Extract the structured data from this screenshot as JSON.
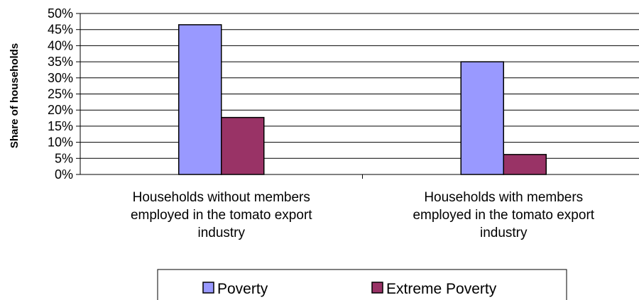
{
  "chart_data": {
    "type": "bar",
    "ylabel": "Share of households",
    "xlabel": "",
    "ylim": [
      0,
      0.5
    ],
    "ytick_step": 0.05,
    "y_tick_labels": [
      "0%",
      "5%",
      "10%",
      "15%",
      "20%",
      "25%",
      "30%",
      "35%",
      "40%",
      "45%",
      "50%"
    ],
    "categories": [
      [
        "Households without members",
        "employed in the tomato export",
        "industry"
      ],
      [
        "Households with members",
        "employed in the tomato export",
        "industry"
      ]
    ],
    "series": [
      {
        "name": "Poverty",
        "color": "#9999ff",
        "values": [
          0.465,
          0.35
        ]
      },
      {
        "name": "Extreme Poverty",
        "color": "#993366",
        "values": [
          0.177,
          0.062
        ]
      }
    ],
    "grid": true,
    "legend_position": "bottom"
  }
}
